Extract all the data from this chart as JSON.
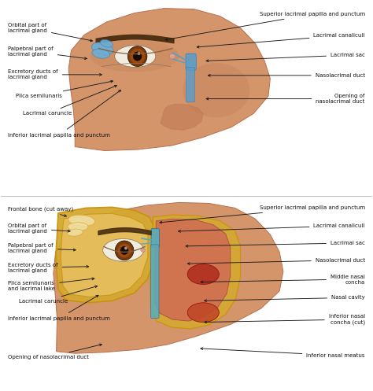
{
  "background_color": "#ffffff",
  "figsize": [
    4.74,
    4.97
  ],
  "dpi": 100,
  "label_fontsize": 5.0,
  "arrow_color": "#1a1a1a",
  "text_color": "#111111",
  "skin_color": "#d4956a",
  "skin_edge": "#b87050",
  "skin_shadow": "#c07a55",
  "eye_white": "#f0ede0",
  "iris_color": "#8b4513",
  "pupil_color": "#1a0a00",
  "brow_color": "#4a2e10",
  "gland_blue": "#6aaed6",
  "gland_blue_edge": "#3a7ab0",
  "duct_blue": "#5b9dc8",
  "gold_color": "#c8920a",
  "gold_fill": "#d4a830",
  "gold_inner": "#e8c060",
  "red_fill": "#b03020",
  "red_dark": "#8b0000",
  "teal_fill": "#5aabbc",
  "teal_edge": "#2a7090",
  "top_labels_left": [
    {
      "text": "Orbital part of\nlacrimal gland",
      "xt": 0.02,
      "yt": 0.93,
      "xa": 0.255,
      "ya": 0.895
    },
    {
      "text": "Palpebral part of\nlacrimal gland",
      "xt": 0.02,
      "yt": 0.87,
      "xa": 0.24,
      "ya": 0.85
    },
    {
      "text": "Excretory ducts of\nlacrimal gland",
      "xt": 0.02,
      "yt": 0.81,
      "xa": 0.28,
      "ya": 0.81
    },
    {
      "text": "Plica semilunaris",
      "xt": 0.04,
      "yt": 0.755,
      "xa": 0.31,
      "ya": 0.795
    },
    {
      "text": "Lacrimal caruncle",
      "xt": 0.06,
      "yt": 0.71,
      "xa": 0.32,
      "ya": 0.785
    },
    {
      "text": "Inferior lacrimal papilla and punctum",
      "xt": 0.02,
      "yt": 0.655,
      "xa": 0.33,
      "ya": 0.775
    }
  ],
  "top_labels_right": [
    {
      "text": "Superior lacrimal papilla and punctum",
      "xt": 0.98,
      "yt": 0.965,
      "xa": 0.435,
      "ya": 0.898,
      "ha": "right"
    },
    {
      "text": "Lacrimal canaliculi",
      "xt": 0.98,
      "yt": 0.91,
      "xa": 0.52,
      "ya": 0.88,
      "ha": "right"
    },
    {
      "text": "Lacrimal sac",
      "xt": 0.98,
      "yt": 0.86,
      "xa": 0.545,
      "ya": 0.845,
      "ha": "right"
    },
    {
      "text": "Nasolacrimal duct",
      "xt": 0.98,
      "yt": 0.808,
      "xa": 0.55,
      "ya": 0.808,
      "ha": "right"
    },
    {
      "text": "Opening of\nnasolacrimal duct",
      "xt": 0.98,
      "yt": 0.748,
      "xa": 0.545,
      "ya": 0.748,
      "ha": "right"
    }
  ],
  "bot_labels_left": [
    {
      "text": "Frontal bone (cut away)",
      "xt": 0.02,
      "yt": 0.465,
      "xa": 0.185,
      "ya": 0.445
    },
    {
      "text": "Orbital part of\nlacrimal gland",
      "xt": 0.02,
      "yt": 0.415,
      "xa": 0.195,
      "ya": 0.408
    },
    {
      "text": "Palpebral part of\nlacrimal gland",
      "xt": 0.02,
      "yt": 0.365,
      "xa": 0.21,
      "ya": 0.36
    },
    {
      "text": "Excretory ducts of\nlacrimal gland",
      "xt": 0.02,
      "yt": 0.315,
      "xa": 0.245,
      "ya": 0.318
    },
    {
      "text": "Plica semilunaris\nand lacrimal lake",
      "xt": 0.02,
      "yt": 0.268,
      "xa": 0.26,
      "ya": 0.288
    },
    {
      "text": "Lacrimal caruncle",
      "xt": 0.05,
      "yt": 0.228,
      "xa": 0.268,
      "ya": 0.27
    },
    {
      "text": "Inferior lacrimal papilla and punctum",
      "xt": 0.02,
      "yt": 0.185,
      "xa": 0.27,
      "ya": 0.248
    },
    {
      "text": "Opening of nasolacrimal duct",
      "xt": 0.02,
      "yt": 0.085,
      "xa": 0.28,
      "ya": 0.12
    }
  ],
  "bot_labels_right": [
    {
      "text": "Superior lacrimal papilla and punctum",
      "xt": 0.98,
      "yt": 0.468,
      "xa": 0.42,
      "ya": 0.43,
      "ha": "right"
    },
    {
      "text": "Lacrimal canaliculi",
      "xt": 0.98,
      "yt": 0.422,
      "xa": 0.47,
      "ya": 0.408,
      "ha": "right"
    },
    {
      "text": "Lacrimal sac",
      "xt": 0.98,
      "yt": 0.378,
      "xa": 0.49,
      "ya": 0.37,
      "ha": "right"
    },
    {
      "text": "Nasolacrimal duct",
      "xt": 0.98,
      "yt": 0.334,
      "xa": 0.495,
      "ya": 0.325,
      "ha": "right"
    },
    {
      "text": "Middle nasal\nconcha",
      "xt": 0.98,
      "yt": 0.285,
      "xa": 0.53,
      "ya": 0.278,
      "ha": "right"
    },
    {
      "text": "Nasal cavity",
      "xt": 0.98,
      "yt": 0.238,
      "xa": 0.54,
      "ya": 0.23,
      "ha": "right"
    },
    {
      "text": "Inferior nasal\nconcha (cut)",
      "xt": 0.98,
      "yt": 0.182,
      "xa": 0.54,
      "ya": 0.175,
      "ha": "right"
    },
    {
      "text": "Inferior nasal meatus",
      "xt": 0.98,
      "yt": 0.09,
      "xa": 0.53,
      "ya": 0.108,
      "ha": "right"
    }
  ]
}
